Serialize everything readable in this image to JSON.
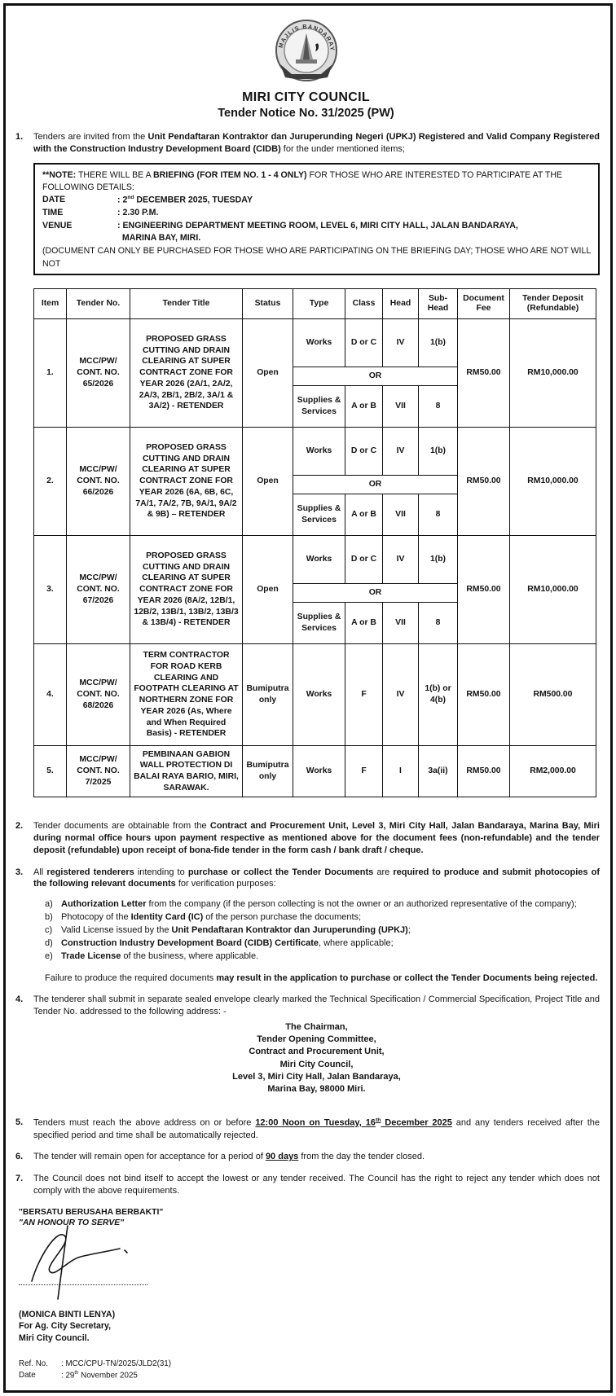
{
  "header": {
    "council": "MIRI CITY COUNCIL",
    "notice": "Tender Notice No. 31/2025 (PW)",
    "logo_ring_text": "MAJLIS BANDARAYA MIRI"
  },
  "p1": {
    "num": "1.",
    "rich": [
      {
        "t": "Tenders are invited from the "
      },
      {
        "t": "Unit Pendaftaran Kontraktor dan Juruperunding Negeri (UPKJ) Registered and Valid Company Registered with the Construction Industry Development Board (CIDB)",
        "b": 1
      },
      {
        "t": " for the under mentioned items;"
      }
    ]
  },
  "note": {
    "line1": [
      {
        "t": "**NOTE:",
        "b": 1
      },
      {
        "t": " THERE WILL BE A "
      },
      {
        "t": "BRIEFING (FOR ITEM NO. 1 - 4 ONLY)",
        "b": 1
      },
      {
        "t": " FOR THOSE WHO ARE INTERESTED TO PARTICIPATE AT THE FOLLOWING DETAILS:"
      }
    ],
    "rows": [
      {
        "label": "DATE",
        "value": [
          {
            "t": ":  2",
            "b": 1
          },
          {
            "t": "nd",
            "b": 1,
            "sup": 1
          },
          {
            "t": " DECEMBER 2025, TUESDAY",
            "b": 1
          }
        ]
      },
      {
        "label": "TIME",
        "value": [
          {
            "t": ":  2.30 P.M.",
            "b": 1
          }
        ]
      },
      {
        "label": "VENUE",
        "value": [
          {
            "t": ": ENGINEERING DEPARTMENT MEETING ROOM, LEVEL 6, MIRI CITY HALL, JALAN BANDARAYA,",
            "b": 1
          }
        ]
      },
      {
        "label": "",
        "value": [
          {
            "t": "  MARINA BAY, MIRI.",
            "b": 1
          }
        ]
      }
    ],
    "footer": "(DOCUMENT CAN ONLY BE PURCHASED FOR THOSE WHO ARE PARTICIPATING ON THE BRIEFING DAY; THOSE WHO ARE NOT WILL NOT"
  },
  "table": {
    "headers": [
      "Item",
      "Tender No.",
      "Tender Title",
      "Status",
      "Type",
      "Class",
      "Head",
      "Sub-Head",
      "Document Fee",
      "Tender Deposit (Refundable)"
    ],
    "or_label": "OR",
    "rows": [
      {
        "item": "1.",
        "tender_no": "MCC/PW/ CONT. NO. 65/2026",
        "title": "PROPOSED GRASS CUTTING AND DRAIN CLEARING AT SUPER CONTRACT ZONE FOR YEAR 2026 (2A/1, 2A/2, 2A/3, 2B/1, 2B/2, 3A/1 & 3A/2) - RETENDER",
        "status": "Open",
        "works": {
          "type": "Works",
          "cls": "D or C",
          "head": "IV",
          "sub": "1(b)"
        },
        "supplies": {
          "type": "Supplies & Services",
          "cls": "A or B",
          "head": "VII",
          "sub": "8"
        },
        "fee": "RM50.00",
        "deposit": "RM10,000.00"
      },
      {
        "item": "2.",
        "tender_no": "MCC/PW/ CONT. NO. 66/2026",
        "title": "PROPOSED GRASS CUTTING AND DRAIN CLEARING AT SUPER CONTRACT ZONE FOR YEAR 2026 (6A, 6B, 6C, 7A/1, 7A/2, 7B, 9A/1, 9A/2 & 9B) – RETENDER",
        "status": "Open",
        "works": {
          "type": "Works",
          "cls": "D or C",
          "head": "IV",
          "sub": "1(b)"
        },
        "supplies": {
          "type": "Supplies & Services",
          "cls": "A or B",
          "head": "VII",
          "sub": "8"
        },
        "fee": "RM50.00",
        "deposit": "RM10,000.00"
      },
      {
        "item": "3.",
        "tender_no": "MCC/PW/ CONT. NO. 67/2026",
        "title": "PROPOSED GRASS CUTTING AND DRAIN CLEARING AT SUPER CONTRACT ZONE FOR YEAR 2026 (8A/2, 12B/1, 12B/2, 13B/1, 13B/2, 13B/3 & 13B/4) - RETENDER",
        "status": "Open",
        "works": {
          "type": "Works",
          "cls": "D or C",
          "head": "IV",
          "sub": "1(b)"
        },
        "supplies": {
          "type": "Supplies & Services",
          "cls": "A or B",
          "head": "VII",
          "sub": "8"
        },
        "fee": "RM50.00",
        "deposit": "RM10,000.00"
      },
      {
        "item": "4.",
        "tender_no": "MCC/PW/ CONT. NO. 68/2026",
        "title": "TERM CONTRACTOR FOR ROAD KERB CLEARING AND FOOTPATH CLEARING AT NORTHERN ZONE FOR YEAR 2026 (As, Where and When Required Basis) - RETENDER",
        "status": "Bumiputra only",
        "single": {
          "type": "Works",
          "cls": "F",
          "head": "IV",
          "sub": "1(b) or 4(b)"
        },
        "fee": "RM50.00",
        "deposit": "RM500.00"
      },
      {
        "item": "5.",
        "tender_no": "MCC/PW/ CONT. NO. 7/2025",
        "title": "PEMBINAAN GABION WALL PROTECTION DI BALAI RAYA BARIO, MIRI, SARAWAK.",
        "status": "Bumiputra only",
        "single": {
          "type": "Works",
          "cls": "F",
          "head": "I",
          "sub": "3a(ii)"
        },
        "fee": "RM50.00",
        "deposit": "RM2,000.00"
      }
    ]
  },
  "p2": {
    "num": "2.",
    "rich": [
      {
        "t": "Tender documents are obtainable from the "
      },
      {
        "t": "Contract and Procurement Unit, Level 3, Miri City Hall, Jalan Bandaraya, Marina Bay, Miri during normal office hours upon payment respective as mentioned above for the document fees (non-refundable) and the tender deposit (refundable)",
        "b": 1
      },
      {
        "t": " upon receipt of bona-fide tender in the form cash / bank draft / cheque.",
        "b": 1
      }
    ]
  },
  "p3": {
    "num": "3.",
    "rich": [
      {
        "t": "All "
      },
      {
        "t": "registered tenderers",
        "b": 1
      },
      {
        "t": " intending to "
      },
      {
        "t": "purchase or collect the Tender Documents",
        "b": 1
      },
      {
        "t": " are "
      },
      {
        "t": "required to produce and submit photocopies of the following relevant documents",
        "b": 1
      },
      {
        "t": " for verification purposes:"
      }
    ],
    "list": [
      {
        "label": "a)",
        "rich": [
          {
            "t": "Authorization Letter",
            "b": 1
          },
          {
            "t": " from the company (if the person collecting is not the owner or an authorized representative of the company);"
          }
        ]
      },
      {
        "label": "b)",
        "rich": [
          {
            "t": "Photocopy of the "
          },
          {
            "t": "Identity Card (IC)",
            "b": 1
          },
          {
            "t": " of the person purchase the documents;"
          }
        ]
      },
      {
        "label": "c)",
        "rich": [
          {
            "t": "Valid License issued by the "
          },
          {
            "t": "Unit Pendaftaran Kontraktor dan Juruperunding (UPKJ)",
            "b": 1
          },
          {
            "t": ";"
          }
        ]
      },
      {
        "label": "d)",
        "rich": [
          {
            "t": "Construction Industry Development Board (CIDB) Certificate",
            "b": 1
          },
          {
            "t": ", where applicable;"
          }
        ]
      },
      {
        "label": "e)",
        "rich": [
          {
            "t": "Trade License",
            "b": 1
          },
          {
            "t": " of the business, where applicable."
          }
        ]
      }
    ],
    "failure": [
      {
        "t": "Failure to produce the required documents "
      },
      {
        "t": "may result in the application to purchase or collect the Tender Documents being rejected.",
        "b": 1
      }
    ]
  },
  "p4": {
    "num": "4.",
    "rich": [
      {
        "t": "The tenderer shall submit in separate sealed envelope clearly marked the Technical Specification / Commercial Specification, Project Title and Tender No. addressed to the following address: -"
      }
    ],
    "address": [
      "The Chairman,",
      "Tender Opening Committee,",
      "Contract and Procurement Unit,",
      "Miri City Council,",
      "Level 3, Miri City Hall, Jalan Bandaraya,",
      "Marina Bay, 98000 Miri."
    ]
  },
  "p5": {
    "num": "5.",
    "rich": [
      {
        "t": "Tenders must reach the above address on or before "
      },
      {
        "t": "12:00 Noon on Tuesday, 16",
        "b": 1,
        "u": 1
      },
      {
        "t": "th",
        "b": 1,
        "u": 1,
        "sup": 1
      },
      {
        "t": " December 2025",
        "b": 1,
        "u": 1
      },
      {
        "t": " and any tenders received after the specified period and time shall be automatically rejected."
      }
    ]
  },
  "p6": {
    "num": "6.",
    "rich": [
      {
        "t": "The tender will remain open for acceptance for a period of "
      },
      {
        "t": "90 days",
        "b": 1,
        "u": 1
      },
      {
        "t": " from the day the tender closed."
      }
    ]
  },
  "p7": {
    "num": "7.",
    "rich": [
      {
        "t": "The Council does not bind itself to accept the lowest or any tender received. The Council has the right to reject any tender which does not comply with the above requirements."
      }
    ]
  },
  "footer": {
    "motto1": "\"BERSATU BERUSAHA BERBAKTI\"",
    "motto2": "\"AN HONOUR TO SERVE\"",
    "signatory_name": "(MONICA BINTI LENYA)",
    "signatory_title": "For Ag. City Secretary,",
    "signatory_org": "Miri City Council.",
    "ref_label": "Ref. No.",
    "ref_value": ": MCC/CPU-TN/2025/JLD2(31)",
    "date_label": "Date",
    "date_value": [
      {
        "t": ": 29"
      },
      {
        "t": "th",
        "sup": 1
      },
      {
        "t": " November 2025"
      }
    ]
  }
}
